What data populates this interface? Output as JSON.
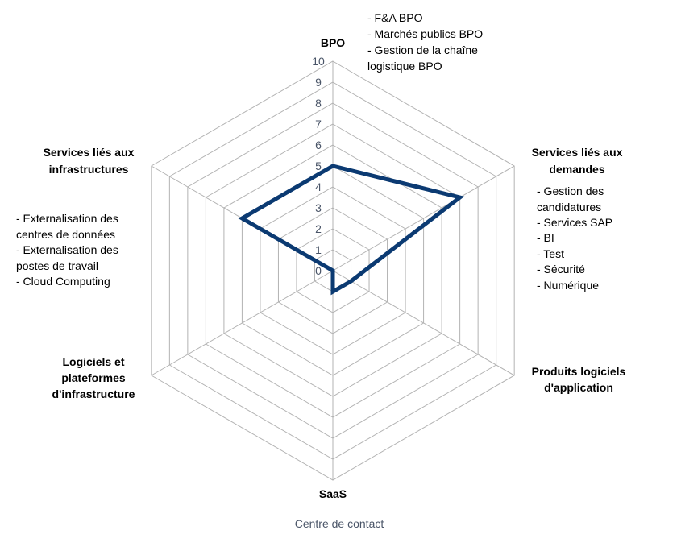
{
  "chart_data": {
    "type": "radar",
    "axes": [
      "BPO",
      "Services liés aux demandes",
      "Produits logiciels d'application",
      "SaaS",
      "Logiciels et plateformes d'infrastructure",
      "Services liés aux infrastructures"
    ],
    "series": [
      {
        "values": [
          5,
          7,
          1,
          1,
          0,
          5
        ],
        "color": "#0b3a72"
      }
    ],
    "r_range": [
      0,
      10
    ],
    "ticks": [
      0,
      1,
      2,
      3,
      4,
      5,
      6,
      7,
      8,
      9,
      10
    ],
    "grid": true,
    "grid_color": "#b3b3b3",
    "axis_titles": {
      "bpo": "BPO",
      "app_services_1": "Services liés aux",
      "app_services_2": "demandes",
      "app_products_1": "Produits logiciels",
      "app_products_2": "d'application",
      "saas": "SaaS",
      "infra_software_1": "Logiciels et",
      "infra_software_2": "plateformes",
      "infra_software_3": "d'infrastructure",
      "infra_services_1": "Services liés aux",
      "infra_services_2": "infrastructures"
    },
    "annotations": {
      "bpo": [
        "- F&A BPO",
        "- Marchés publics BPO",
        "- Gestion de la chaîne",
        "logistique BPO"
      ],
      "app_services": [
        "- Gestion des",
        "candidatures",
        "- Services SAP",
        "- BI",
        "- Test",
        "- Sécurité",
        "- Numérique"
      ],
      "infra_services": [
        "- Externalisation des",
        "centres de données",
        "- Externalisation des",
        "postes de travail",
        "- Cloud Computing"
      ],
      "saas": "Centre de contact"
    }
  }
}
